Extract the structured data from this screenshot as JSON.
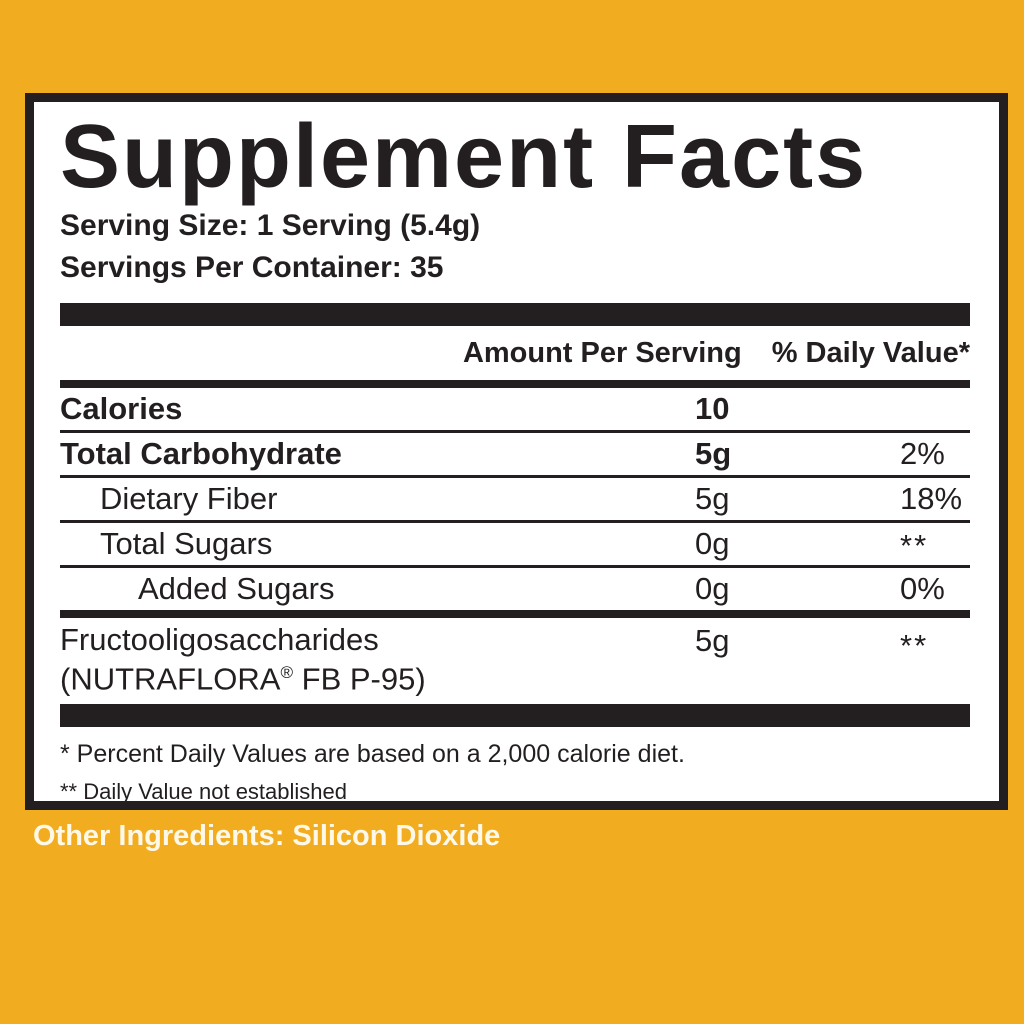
{
  "colors": {
    "background": "#F2AC20",
    "panel_background": "#ffffff",
    "rule_black": "#231f20",
    "other_ingredients_text": "#FDF8E8"
  },
  "panel": {
    "title": "Supplement Facts",
    "serving_size": "Serving Size: 1 Serving (5.4g)",
    "servings_per_container": "Servings Per Container: 35",
    "column_headers": {
      "amount": "Amount Per Serving",
      "daily_value": "% Daily Value*"
    },
    "rows": [
      {
        "name": "Calories",
        "amount": "10",
        "dv": ""
      },
      {
        "name": "Total Carbohydrate",
        "amount": "5g",
        "dv": "2%"
      },
      {
        "name": "Dietary Fiber",
        "amount": "5g",
        "dv": "18%"
      },
      {
        "name": "Total Sugars",
        "amount": "0g",
        "dv": "**"
      },
      {
        "name": "Added Sugars",
        "amount": "0g",
        "dv": "0%"
      },
      {
        "name": "Fructooligosaccharides",
        "brand": {
          "prefix": "(NUTRAFLORA",
          "reg": "®",
          "suffix": " FB P-95)"
        },
        "amount": "5g",
        "dv": "**"
      }
    ],
    "footnotes": [
      "* Percent Daily Values are based on a 2,000 calorie diet.",
      "** Daily Value not established"
    ]
  },
  "other_ingredients": "Other Ingredients: Silicon Dioxide"
}
